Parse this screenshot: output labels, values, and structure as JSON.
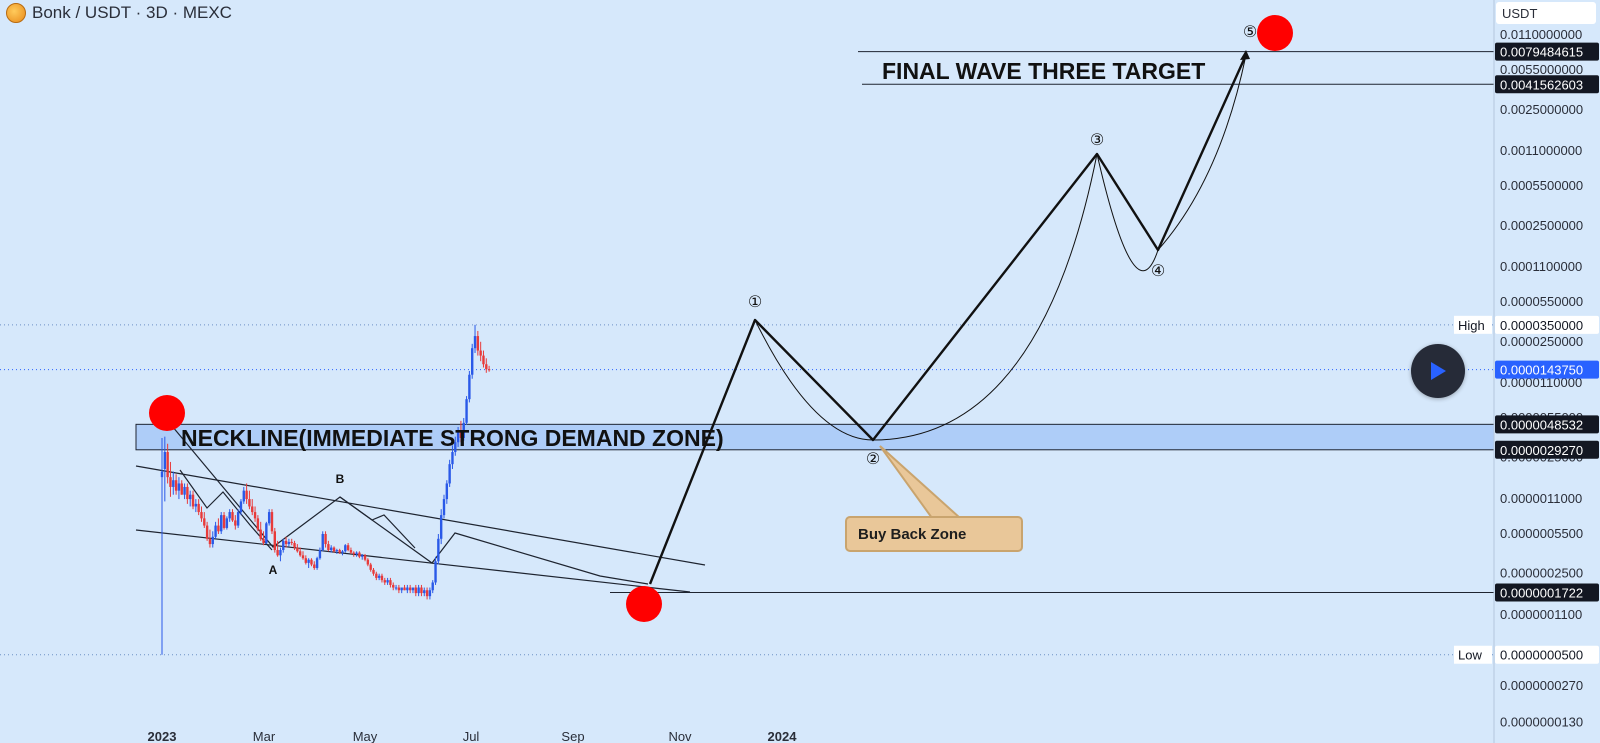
{
  "header": {
    "symbol": "Bonk / USDT · 3D · MEXC",
    "logo_icon": "bonk-coin-logo"
  },
  "currency": "USDT",
  "colors": {
    "background": "#d6e8fb",
    "bull_candle": "#2a59e8",
    "bear_candle": "#e83a3a",
    "marker": "#ff0000",
    "zone_fill": "#aecdf8",
    "callout_fill": "#e9c799"
  },
  "chart_data": {
    "type": "candlestick",
    "y_scale": "log",
    "ylim": [
      1.1e-08,
      0.0115
    ],
    "y_ticks": [
      "0.0110000000",
      "0.0055000000",
      "0.0025000000",
      "0.0011000000",
      "0.0005500000",
      "0.0002500000",
      "0.0001100000",
      "0.0000550000",
      "0.0000350000",
      "0.0000250000",
      "0.0000110000",
      "0.0000055000",
      "0.0000025000",
      "0.0000011000",
      "0.0000005500",
      "0.0000002500",
      "0.0000001100",
      "0.0000000500",
      "0.0000000270",
      "0.0000000130"
    ],
    "x_ticks": [
      "2023",
      "Mar",
      "May",
      "Jul",
      "Sep",
      "Nov",
      "2024"
    ],
    "price_labels": [
      {
        "text": "0.0079484615",
        "value": 0.0079484615,
        "style": "dark"
      },
      {
        "text": "0.0041562603",
        "value": 0.0041562603,
        "style": "dark"
      },
      {
        "text": "0.0000350000",
        "value": 3.5e-05,
        "style": "plain",
        "tag": "High"
      },
      {
        "text": "0.0000143750",
        "value": 1.4375e-05,
        "style": "blue"
      },
      {
        "text": "0.0000048532",
        "value": 4.8532e-06,
        "style": "dark"
      },
      {
        "text": "0.0000029270",
        "value": 2.927e-06,
        "style": "dark"
      },
      {
        "text": "0.0000001722",
        "value": 1.722e-07,
        "style": "dark"
      },
      {
        "text": "0.0000000500",
        "value": 5e-08,
        "style": "plain",
        "tag": "Low"
      }
    ],
    "candles": [
      {
        "date": "2023-01-01",
        "open": 1.7e-06,
        "high": 3.7e-06,
        "low": 5e-08,
        "close": 1.9e-06
      },
      {
        "date": "2023-01-04",
        "open": 2e-06,
        "high": 3.8e-06,
        "low": 1.05e-06,
        "close": 2.8e-06
      },
      {
        "date": "2023-01-07",
        "open": 2.8e-06,
        "high": 3.3e-06,
        "low": 1.5e-06,
        "close": 1.7e-06
      },
      {
        "date": "2023-01-10",
        "open": 1.7e-06,
        "high": 2.3e-06,
        "low": 1.15e-06,
        "close": 1.4e-06
      },
      {
        "date": "2023-01-13",
        "open": 1.4e-06,
        "high": 1.9e-06,
        "low": 1.2e-06,
        "close": 1.6e-06
      },
      {
        "date": "2023-01-16",
        "open": 1.6e-06,
        "high": 1.8e-06,
        "low": 1.2e-06,
        "close": 1.3e-06
      },
      {
        "date": "2023-01-19",
        "open": 1.3e-06,
        "high": 1.7e-06,
        "low": 1.1e-06,
        "close": 1.5e-06
      },
      {
        "date": "2023-01-22",
        "open": 1.5e-06,
        "high": 1.6e-06,
        "low": 1.2e-06,
        "close": 1.2e-06
      },
      {
        "date": "2023-01-25",
        "open": 1.2e-06,
        "high": 1.5e-06,
        "low": 1.1e-06,
        "close": 1.4e-06
      },
      {
        "date": "2023-01-28",
        "open": 1.4e-06,
        "high": 1.5e-06,
        "low": 1e-06,
        "close": 1.1e-06
      },
      {
        "date": "2023-01-31",
        "open": 1.1e-06,
        "high": 1.3e-06,
        "low": 9.5e-07,
        "close": 1.2e-06
      },
      {
        "date": "2023-02-03",
        "open": 1.2e-06,
        "high": 1.3e-06,
        "low": 9e-07,
        "close": 9.5e-07
      },
      {
        "date": "2023-02-06",
        "open": 9.5e-07,
        "high": 1.1e-06,
        "low": 8.5e-07,
        "close": 1e-06
      },
      {
        "date": "2023-02-09",
        "open": 1e-06,
        "high": 1.1e-06,
        "low": 8e-07,
        "close": 8.5e-07
      },
      {
        "date": "2023-02-12",
        "open": 8.5e-07,
        "high": 9.5e-07,
        "low": 7e-07,
        "close": 7.5e-07
      },
      {
        "date": "2023-02-15",
        "open": 7.5e-07,
        "high": 8.5e-07,
        "low": 6.2e-07,
        "close": 6.5e-07
      },
      {
        "date": "2023-02-18",
        "open": 6.5e-07,
        "high": 7e-07,
        "low": 4.8e-07,
        "close": 5e-07
      },
      {
        "date": "2023-02-21",
        "open": 5e-07,
        "high": 6e-07,
        "low": 4.2e-07,
        "close": 4.5e-07
      },
      {
        "date": "2023-02-24",
        "open": 4.5e-07,
        "high": 5.8e-07,
        "low": 4.2e-07,
        "close": 5.2e-07
      },
      {
        "date": "2023-02-27",
        "open": 5.2e-07,
        "high": 7e-07,
        "low": 5e-07,
        "close": 6.5e-07
      },
      {
        "date": "2023-03-02",
        "open": 6.5e-07,
        "high": 7.5e-07,
        "low": 5.5e-07,
        "close": 5.8e-07
      },
      {
        "date": "2023-03-05",
        "open": 5.8e-07,
        "high": 8.5e-07,
        "low": 5.5e-07,
        "close": 8e-07
      },
      {
        "date": "2023-03-08",
        "open": 8e-07,
        "high": 8.5e-07,
        "low": 6e-07,
        "close": 6.2e-07
      },
      {
        "date": "2023-03-11",
        "open": 6.2e-07,
        "high": 7.8e-07,
        "low": 6e-07,
        "close": 7.5e-07
      },
      {
        "date": "2023-03-14",
        "open": 7.5e-07,
        "high": 9e-07,
        "low": 7e-07,
        "close": 8.5e-07
      },
      {
        "date": "2023-03-17",
        "open": 8.5e-07,
        "high": 9e-07,
        "low": 7e-07,
        "close": 7.2e-07
      },
      {
        "date": "2023-03-20",
        "open": 7.2e-07,
        "high": 8e-07,
        "low": 6e-07,
        "close": 6.5e-07
      },
      {
        "date": "2023-03-23",
        "open": 6.5e-07,
        "high": 9e-07,
        "low": 6.2e-07,
        "close": 8.5e-07
      },
      {
        "date": "2023-03-26",
        "open": 8.5e-07,
        "high": 1.1e-06,
        "low": 8e-07,
        "close": 1.05e-06
      },
      {
        "date": "2023-03-29",
        "open": 1.05e-06,
        "high": 1.4e-06,
        "low": 1e-06,
        "close": 1.3e-06
      },
      {
        "date": "2023-04-01",
        "open": 1.3e-06,
        "high": 1.5e-06,
        "low": 1e-06,
        "close": 1.1e-06
      },
      {
        "date": "2023-04-04",
        "open": 1.1e-06,
        "high": 1.3e-06,
        "low": 9e-07,
        "close": 9.5e-07
      },
      {
        "date": "2023-04-07",
        "open": 9.5e-07,
        "high": 1.1e-06,
        "low": 8e-07,
        "close": 8.5e-07
      },
      {
        "date": "2023-04-10",
        "open": 8.5e-07,
        "high": 9.5e-07,
        "low": 7e-07,
        "close": 7.5e-07
      },
      {
        "date": "2023-04-13",
        "open": 7.5e-07,
        "high": 8e-07,
        "low": 5.8e-07,
        "close": 6e-07
      },
      {
        "date": "2023-04-16",
        "open": 6e-07,
        "high": 7e-07,
        "low": 4.8e-07,
        "close": 5e-07
      },
      {
        "date": "2023-04-19",
        "open": 5e-07,
        "high": 5.8e-07,
        "low": 4.4e-07,
        "close": 4.6e-07
      },
      {
        "date": "2023-04-22",
        "open": 4.6e-07,
        "high": 7e-07,
        "low": 4.5e-07,
        "close": 6.8e-07
      },
      {
        "date": "2023-04-25",
        "open": 6.8e-07,
        "high": 9e-07,
        "low": 6.5e-07,
        "close": 8.5e-07
      },
      {
        "date": "2023-04-28",
        "open": 8.5e-07,
        "high": 9e-07,
        "low": 5.5e-07,
        "close": 5.8e-07
      },
      {
        "date": "2023-05-01",
        "open": 5.8e-07,
        "high": 6.2e-07,
        "low": 3.8e-07,
        "close": 4e-07
      },
      {
        "date": "2023-05-04",
        "open": 4e-07,
        "high": 4.8e-07,
        "low": 3.5e-07,
        "close": 3.6e-07
      },
      {
        "date": "2023-05-07",
        "open": 3.6e-07,
        "high": 4.2e-07,
        "low": 3.2e-07,
        "close": 4e-07
      },
      {
        "date": "2023-05-10",
        "open": 4e-07,
        "high": 5e-07,
        "low": 3.8e-07,
        "close": 4.8e-07
      },
      {
        "date": "2023-05-13",
        "open": 4.8e-07,
        "high": 5.2e-07,
        "low": 4.2e-07,
        "close": 4.5e-07
      },
      {
        "date": "2023-05-16",
        "open": 4.5e-07,
        "high": 5e-07,
        "low": 4.3e-07,
        "close": 4.7e-07
      },
      {
        "date": "2023-05-19",
        "open": 4.7e-07,
        "high": 5e-07,
        "low": 4.4e-07,
        "close": 4.6e-07
      },
      {
        "date": "2023-05-22",
        "open": 4.6e-07,
        "high": 4.8e-07,
        "low": 4e-07,
        "close": 4.2e-07
      },
      {
        "date": "2023-05-25",
        "open": 4.2e-07,
        "high": 4.5e-07,
        "low": 3.8e-07,
        "close": 3.9e-07
      },
      {
        "date": "2023-05-28",
        "open": 3.9e-07,
        "high": 4.2e-07,
        "low": 3.5e-07,
        "close": 3.6e-07
      },
      {
        "date": "2023-05-31",
        "open": 3.6e-07,
        "high": 3.9e-07,
        "low": 3.3e-07,
        "close": 3.4e-07
      },
      {
        "date": "2023-06-03",
        "open": 3.4e-07,
        "high": 3.6e-07,
        "low": 3e-07,
        "close": 3.1e-07
      },
      {
        "date": "2023-06-06",
        "open": 3.1e-07,
        "high": 3.4e-07,
        "low": 2.8e-07,
        "close": 3.3e-07
      },
      {
        "date": "2023-06-09",
        "open": 3.3e-07,
        "high": 3.4e-07,
        "low": 2.9e-07,
        "close": 3e-07
      },
      {
        "date": "2023-06-12",
        "open": 3e-07,
        "high": 3.2e-07,
        "low": 2.7e-07,
        "close": 2.8e-07
      },
      {
        "date": "2023-06-15",
        "open": 2.8e-07,
        "high": 3.5e-07,
        "low": 2.7e-07,
        "close": 3.4e-07
      },
      {
        "date": "2023-06-18",
        "open": 3.4e-07,
        "high": 4.2e-07,
        "low": 3.3e-07,
        "close": 4e-07
      },
      {
        "date": "2023-06-21",
        "open": 4e-07,
        "high": 5.8e-07,
        "low": 3.9e-07,
        "close": 5.5e-07
      },
      {
        "date": "2023-06-24",
        "open": 5.5e-07,
        "high": 5.8e-07,
        "low": 4.2e-07,
        "close": 4.5e-07
      },
      {
        "date": "2023-06-27",
        "open": 4.5e-07,
        "high": 4.8e-07,
        "low": 3.9e-07,
        "close": 4e-07
      },
      {
        "date": "2023-06-30",
        "open": 4e-07,
        "high": 4.4e-07,
        "low": 3.8e-07,
        "close": 4.2e-07
      },
      {
        "date": "2023-07-03",
        "open": 4.2e-07,
        "high": 4.3e-07,
        "low": 3.8e-07,
        "close": 3.9e-07
      },
      {
        "date": "2023-07-06",
        "open": 3.9e-07,
        "high": 4.1e-07,
        "low": 3.7e-07,
        "close": 4e-07
      },
      {
        "date": "2023-07-09",
        "open": 4e-07,
        "high": 4.1e-07,
        "low": 3.7e-07,
        "close": 3.8e-07
      },
      {
        "date": "2023-07-12",
        "open": 3.8e-07,
        "high": 4e-07,
        "low": 3.6e-07,
        "close": 3.9e-07
      },
      {
        "date": "2023-07-15",
        "open": 3.9e-07,
        "high": 4.5e-07,
        "low": 3.8e-07,
        "close": 4.4e-07
      },
      {
        "date": "2023-07-18",
        "open": 4.4e-07,
        "high": 4.6e-07,
        "low": 3.9e-07,
        "close": 4e-07
      },
      {
        "date": "2023-07-21",
        "open": 4e-07,
        "high": 4.2e-07,
        "low": 3.7e-07,
        "close": 3.8e-07
      },
      {
        "date": "2023-07-24",
        "open": 3.8e-07,
        "high": 3.9e-07,
        "low": 3.5e-07,
        "close": 3.7e-07
      },
      {
        "date": "2023-07-27",
        "open": 3.7e-07,
        "high": 3.9e-07,
        "low": 3.5e-07,
        "close": 3.8e-07
      },
      {
        "date": "2023-07-30",
        "open": 3.8e-07,
        "high": 3.9e-07,
        "low": 3.4e-07,
        "close": 3.5e-07
      },
      {
        "date": "2023-08-02",
        "open": 3.5e-07,
        "high": 3.7e-07,
        "low": 3.3e-07,
        "close": 3.6e-07
      },
      {
        "date": "2023-08-05",
        "open": 3.6e-07,
        "high": 3.7e-07,
        "low": 3.2e-07,
        "close": 3.3e-07
      },
      {
        "date": "2023-08-08",
        "open": 3.3e-07,
        "high": 3.4e-07,
        "low": 2.9e-07,
        "close": 3e-07
      },
      {
        "date": "2023-08-11",
        "open": 3e-07,
        "high": 3.1e-07,
        "low": 2.6e-07,
        "close": 2.7e-07
      },
      {
        "date": "2023-08-14",
        "open": 2.7e-07,
        "high": 2.8e-07,
        "low": 2.4e-07,
        "close": 2.5e-07
      },
      {
        "date": "2023-08-17",
        "open": 2.5e-07,
        "high": 2.6e-07,
        "low": 2.2e-07,
        "close": 2.3e-07
      },
      {
        "date": "2023-08-20",
        "open": 2.3e-07,
        "high": 2.5e-07,
        "low": 2.2e-07,
        "close": 2.4e-07
      },
      {
        "date": "2023-08-23",
        "open": 2.4e-07,
        "high": 2.5e-07,
        "low": 2.1e-07,
        "close": 2.2e-07
      },
      {
        "date": "2023-08-26",
        "open": 2.2e-07,
        "high": 2.3e-07,
        "low": 2e-07,
        "close": 2.1e-07
      },
      {
        "date": "2023-08-29",
        "open": 2.1e-07,
        "high": 2.3e-07,
        "low": 2e-07,
        "close": 2.2e-07
      },
      {
        "date": "2023-09-01",
        "open": 2.2e-07,
        "high": 2.3e-07,
        "low": 1.9e-07,
        "close": 2e-07
      },
      {
        "date": "2023-09-04",
        "open": 2e-07,
        "high": 2.1e-07,
        "low": 1.8e-07,
        "close": 1.9e-07
      },
      {
        "date": "2023-09-07",
        "open": 1.9e-07,
        "high": 2e-07,
        "low": 1.8e-07,
        "close": 1.9e-07
      },
      {
        "date": "2023-09-10",
        "open": 1.9e-07,
        "high": 2e-07,
        "low": 1.7e-07,
        "close": 1.8e-07
      },
      {
        "date": "2023-09-13",
        "open": 1.8e-07,
        "high": 1.9e-07,
        "low": 1.7e-07,
        "close": 1.9e-07
      },
      {
        "date": "2023-09-16",
        "open": 1.9e-07,
        "high": 2e-07,
        "low": 1.8e-07,
        "close": 1.8e-07
      },
      {
        "date": "2023-09-19",
        "open": 1.8e-07,
        "high": 2e-07,
        "low": 1.7e-07,
        "close": 1.9e-07
      },
      {
        "date": "2023-09-22",
        "open": 1.9e-07,
        "high": 2e-07,
        "low": 1.7e-07,
        "close": 1.8e-07
      },
      {
        "date": "2023-09-25",
        "open": 1.8e-07,
        "high": 1.9e-07,
        "low": 1.7e-07,
        "close": 1.9e-07
      },
      {
        "date": "2023-09-28",
        "open": 1.9e-07,
        "high": 2e-07,
        "low": 1.6e-07,
        "close": 1.7e-07
      },
      {
        "date": "2023-10-01",
        "open": 1.7e-07,
        "high": 2e-07,
        "low": 1.6e-07,
        "close": 1.9e-07
      },
      {
        "date": "2023-10-04",
        "open": 1.9e-07,
        "high": 2e-07,
        "low": 1.6e-07,
        "close": 1.7e-07
      },
      {
        "date": "2023-10-07",
        "open": 1.7e-07,
        "high": 1.9e-07,
        "low": 1.6e-07,
        "close": 1.8e-07
      },
      {
        "date": "2023-10-10",
        "open": 1.8e-07,
        "high": 1.9e-07,
        "low": 1.5e-07,
        "close": 1.6e-07
      },
      {
        "date": "2023-10-13",
        "open": 1.6e-07,
        "high": 1.9e-07,
        "low": 1.5e-07,
        "close": 1.8e-07
      },
      {
        "date": "2023-10-16",
        "open": 1.8e-07,
        "high": 2.2e-07,
        "low": 1.7e-07,
        "close": 2.1e-07
      },
      {
        "date": "2023-10-19",
        "open": 2.1e-07,
        "high": 3.5e-07,
        "low": 2e-07,
        "close": 3.2e-07
      },
      {
        "date": "2023-10-22",
        "open": 3.2e-07,
        "high": 5.5e-07,
        "low": 3e-07,
        "close": 5e-07
      },
      {
        "date": "2023-10-25",
        "open": 5e-07,
        "high": 9e-07,
        "low": 4.5e-07,
        "close": 8e-07
      },
      {
        "date": "2023-10-28",
        "open": 8e-07,
        "high": 1.2e-06,
        "low": 7.5e-07,
        "close": 1.1e-06
      },
      {
        "date": "2023-10-31",
        "open": 1.1e-06,
        "high": 1.6e-06,
        "low": 1e-06,
        "close": 1.5e-06
      },
      {
        "date": "2023-11-03",
        "open": 1.5e-06,
        "high": 2.4e-06,
        "low": 1.4e-06,
        "close": 2.2e-06
      },
      {
        "date": "2023-11-06",
        "open": 2.2e-06,
        "high": 3.2e-06,
        "low": 2e-06,
        "close": 2.8e-06
      },
      {
        "date": "2023-11-09",
        "open": 2.8e-06,
        "high": 3.8e-06,
        "low": 2.6e-06,
        "close": 3.4e-06
      },
      {
        "date": "2023-11-12",
        "open": 3.4e-06,
        "high": 4.6e-06,
        "low": 3.1e-06,
        "close": 4.2e-06
      },
      {
        "date": "2023-11-15",
        "open": 4.2e-06,
        "high": 5.2e-06,
        "low": 3.4e-06,
        "close": 3.7e-06
      },
      {
        "date": "2023-11-18",
        "open": 3.7e-06,
        "high": 5.5e-06,
        "low": 3.5e-06,
        "close": 5e-06
      },
      {
        "date": "2023-11-21",
        "open": 5e-06,
        "high": 8.5e-06,
        "low": 4.8e-06,
        "close": 8e-06
      },
      {
        "date": "2023-11-24",
        "open": 8e-06,
        "high": 1.4e-05,
        "low": 7.5e-06,
        "close": 1.3e-05
      },
      {
        "date": "2023-11-27",
        "open": 1.3e-05,
        "high": 2.4e-05,
        "low": 1.2e-05,
        "close": 2.2e-05
      },
      {
        "date": "2023-11-30",
        "open": 2.2e-05,
        "high": 3.5e-05,
        "low": 2e-05,
        "close": 2.8e-05
      },
      {
        "date": "2023-12-03",
        "open": 2.8e-05,
        "high": 3.1e-05,
        "low": 1.9e-05,
        "close": 2.1e-05
      },
      {
        "date": "2023-12-06",
        "open": 2.1e-05,
        "high": 2.5e-05,
        "low": 1.7e-05,
        "close": 1.9e-05
      },
      {
        "date": "2023-12-09",
        "open": 1.9e-05,
        "high": 2.1e-05,
        "low": 1.5e-05,
        "close": 1.6e-05
      },
      {
        "date": "2023-12-12",
        "open": 1.6e-05,
        "high": 1.8e-05,
        "low": 1.35e-05,
        "close": 1.45e-05
      },
      {
        "date": "2023-12-15",
        "open": 1.45e-05,
        "high": 1.55e-05,
        "low": 1.38e-05,
        "close": 1.4375e-05
      }
    ],
    "annotations": {
      "neckline_label": "NECKLINE(IMMEDIATE STRONG DEMAND ZONE)",
      "final_target_label": "FINAL WAVE THREE TARGET",
      "callout_label": "Buy Back Zone",
      "pattern_labels": [
        "A",
        "B"
      ],
      "wave_labels": [
        "①",
        "②",
        "③",
        "④",
        "⑤"
      ]
    }
  }
}
